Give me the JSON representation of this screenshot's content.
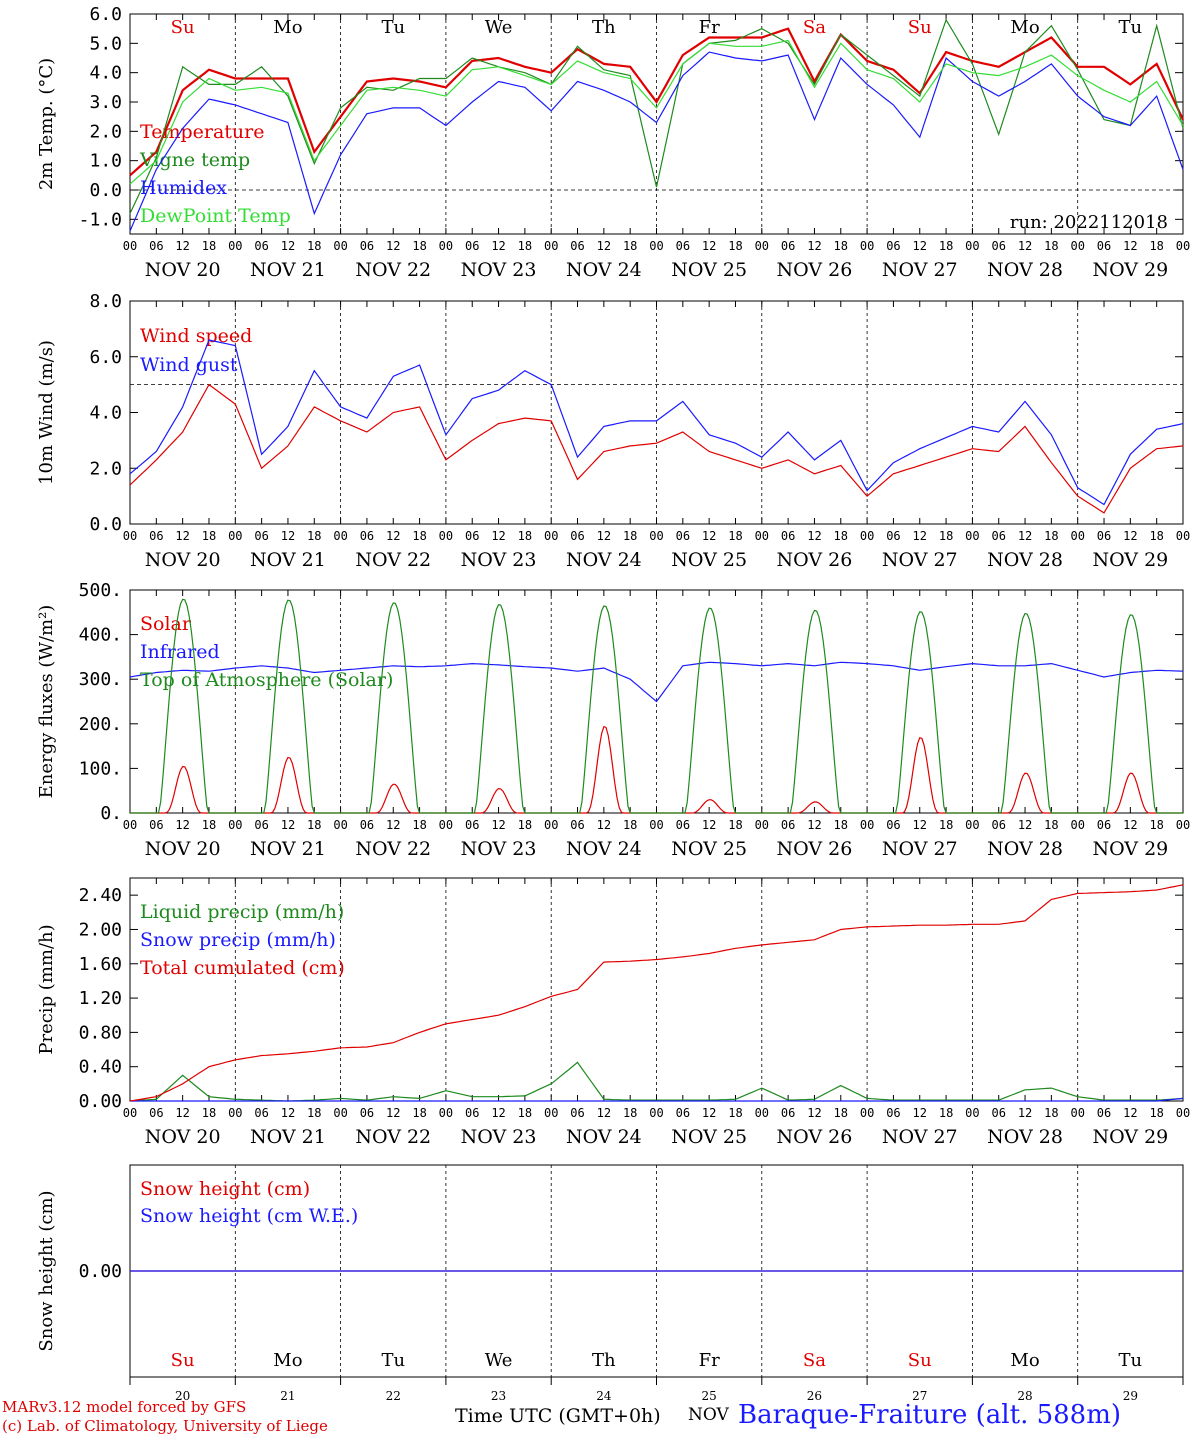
{
  "footer": {
    "model_line1": "MARv3.12 model forced by GFS",
    "model_line2": "(c) Lab. of Climatology, University of Liege",
    "time_label": "Time UTC (GMT+0h)",
    "month_label": "NOV",
    "station": "Baraque-Fraiture (alt. 588m)"
  },
  "days": [
    "NOV 20",
    "NOV 21",
    "NOV 22",
    "NOV 23",
    "NOV 24",
    "NOV 25",
    "NOV 26",
    "NOV 27",
    "NOV 28",
    "NOV 29"
  ],
  "day_numbers": [
    "20",
    "21",
    "22",
    "23",
    "24",
    "25",
    "26",
    "27",
    "28",
    "29"
  ],
  "weekdays": [
    "Su",
    "Mo",
    "Tu",
    "We",
    "Th",
    "Fr",
    "Sa",
    "Su",
    "Mo",
    "Tu"
  ],
  "weekday_colors": [
    "#e00000",
    "#000000",
    "#000000",
    "#000000",
    "#000000",
    "#000000",
    "#e00000",
    "#e00000",
    "#000000",
    "#000000"
  ],
  "hour_ticks": [
    "00",
    "06",
    "12",
    "18"
  ],
  "chart_data": [
    {
      "type": "line",
      "ylabel": "2m Temp. (°C)",
      "ylim": [
        -1.5,
        6.0
      ],
      "yticks": [
        "-1.0",
        "0.0",
        "1.0",
        "2.0",
        "3.0",
        "4.0",
        "5.0",
        "6.0"
      ],
      "dashed_y": 0.0,
      "run_label": "run: 2022112018",
      "x_hours": [
        0,
        6,
        12,
        18,
        24,
        30,
        36,
        42,
        48,
        54,
        60,
        66,
        72,
        78,
        84,
        90,
        96,
        102,
        108,
        114,
        120,
        126,
        132,
        138,
        144,
        150,
        156,
        162,
        168,
        174,
        180,
        186,
        192,
        198,
        204,
        210,
        216,
        222,
        228,
        234,
        240
      ],
      "series": [
        {
          "name": "Temperature",
          "color": "#e00000",
          "values": [
            0.5,
            1.3,
            3.4,
            4.1,
            3.8,
            3.8,
            3.8,
            1.3,
            2.5,
            3.7,
            3.8,
            3.7,
            3.5,
            4.4,
            4.5,
            4.2,
            4.0,
            4.8,
            4.3,
            4.2,
            3.0,
            4.6,
            5.2,
            5.2,
            5.2,
            5.5,
            3.7,
            5.3,
            4.4,
            4.1,
            3.3,
            4.7,
            4.4,
            4.2,
            4.7,
            5.2,
            4.2,
            4.2,
            3.6,
            4.3,
            2.4
          ]
        },
        {
          "name": "Vigne temp",
          "color": "#1e8a1e",
          "values": [
            -0.8,
            1.1,
            4.2,
            3.6,
            3.6,
            4.2,
            3.2,
            0.9,
            2.8,
            3.5,
            3.4,
            3.8,
            3.8,
            4.5,
            4.2,
            4.0,
            3.6,
            4.9,
            4.1,
            3.9,
            0.1,
            4.3,
            5.0,
            5.1,
            5.5,
            5.0,
            3.6,
            5.3,
            4.6,
            3.9,
            3.2,
            5.8,
            4.3,
            1.9,
            4.7,
            5.6,
            4.1,
            2.4,
            2.2,
            5.6,
            2.1
          ]
        },
        {
          "name": "Humidex",
          "color": "#1a1aff",
          "values": [
            -1.4,
            0.7,
            2.1,
            3.1,
            2.9,
            2.6,
            2.3,
            -0.8,
            1.2,
            2.6,
            2.8,
            2.8,
            2.2,
            3.0,
            3.7,
            3.5,
            2.7,
            3.7,
            3.4,
            3.0,
            2.3,
            3.9,
            4.7,
            4.5,
            4.4,
            4.6,
            2.4,
            4.5,
            3.6,
            2.9,
            1.8,
            4.5,
            3.7,
            3.2,
            3.7,
            4.3,
            3.2,
            2.5,
            2.2,
            3.2,
            0.7
          ]
        },
        {
          "name": "DewPoint Temp",
          "color": "#33dd33",
          "values": [
            0.2,
            1.0,
            3.0,
            3.8,
            3.4,
            3.5,
            3.3,
            1.0,
            2.2,
            3.4,
            3.5,
            3.4,
            3.2,
            4.1,
            4.2,
            3.9,
            3.6,
            4.4,
            4.0,
            3.8,
            2.8,
            4.3,
            5.0,
            4.9,
            4.9,
            5.1,
            3.5,
            5.0,
            4.1,
            3.8,
            3.0,
            4.3,
            4.0,
            3.9,
            4.2,
            4.6,
            3.9,
            3.4,
            3.0,
            3.7,
            2.2
          ]
        }
      ]
    },
    {
      "type": "line",
      "ylabel": "10m Wind (m/s)",
      "ylim": [
        0,
        8.0
      ],
      "yticks": [
        "0.0",
        "2.0",
        "4.0",
        "6.0",
        "8.0"
      ],
      "dashed_y": 5.0,
      "x_hours": [
        0,
        6,
        12,
        18,
        24,
        30,
        36,
        42,
        48,
        54,
        60,
        66,
        72,
        78,
        84,
        90,
        96,
        102,
        108,
        114,
        120,
        126,
        132,
        138,
        144,
        150,
        156,
        162,
        168,
        174,
        180,
        186,
        192,
        198,
        204,
        210,
        216,
        222,
        228,
        234,
        240
      ],
      "series": [
        {
          "name": "Wind speed",
          "color": "#e00000",
          "values": [
            1.4,
            2.3,
            3.3,
            5.0,
            4.3,
            2.0,
            2.8,
            4.2,
            3.7,
            3.3,
            4.0,
            4.2,
            2.3,
            3.0,
            3.6,
            3.8,
            3.7,
            1.6,
            2.6,
            2.8,
            2.9,
            3.3,
            2.6,
            2.3,
            2.0,
            2.3,
            1.8,
            2.1,
            1.0,
            1.8,
            2.1,
            2.4,
            2.7,
            2.6,
            3.5,
            2.2,
            1.0,
            0.4,
            2.0,
            2.7,
            2.8
          ]
        },
        {
          "name": "Wind gust",
          "color": "#1a1aff",
          "values": [
            1.8,
            2.6,
            4.2,
            6.6,
            6.4,
            2.5,
            3.5,
            5.5,
            4.2,
            3.8,
            5.3,
            5.7,
            3.2,
            4.5,
            4.8,
            5.5,
            5.0,
            2.4,
            3.5,
            3.7,
            3.7,
            4.4,
            3.2,
            2.9,
            2.4,
            3.3,
            2.3,
            3.0,
            1.2,
            2.2,
            2.7,
            3.1,
            3.5,
            3.3,
            4.4,
            3.2,
            1.3,
            0.7,
            2.5,
            3.4,
            3.6
          ]
        }
      ]
    },
    {
      "type": "line",
      "ylabel": "Energy fluxes (W/m²)",
      "ylim": [
        0,
        500
      ],
      "yticks": [
        "0.",
        "100.",
        "200.",
        "300.",
        "400.",
        "500."
      ],
      "x_hours": [
        0,
        6,
        12,
        18,
        24,
        30,
        36,
        42,
        48,
        54,
        60,
        66,
        72,
        78,
        84,
        90,
        96,
        102,
        108,
        114,
        120,
        126,
        132,
        138,
        144,
        150,
        156,
        162,
        168,
        174,
        180,
        186,
        192,
        198,
        204,
        210,
        216,
        222,
        228,
        234,
        240
      ],
      "series": [
        {
          "name": "Solar",
          "color": "#e00000",
          "peaks": [
            105,
            125,
            65,
            55,
            195,
            30,
            25,
            170,
            90,
            90
          ]
        },
        {
          "name": "Infrared",
          "color": "#1a1aff",
          "values": [
            305,
            315,
            320,
            318,
            325,
            330,
            325,
            315,
            320,
            325,
            330,
            328,
            330,
            335,
            332,
            328,
            325,
            318,
            325,
            300,
            250,
            330,
            338,
            335,
            330,
            335,
            330,
            338,
            335,
            330,
            320,
            328,
            335,
            330,
            330,
            335,
            320,
            305,
            315,
            320,
            318
          ]
        },
        {
          "name": "Top of Atmosphere (Solar)",
          "color": "#1e8a1e",
          "peaks": [
            480,
            478,
            472,
            468,
            465,
            460,
            455,
            452,
            448,
            445
          ]
        }
      ]
    },
    {
      "type": "line",
      "ylabel": "Precip (mm/h)",
      "ylim": [
        0,
        2.6
      ],
      "yticks": [
        "0.00",
        "0.40",
        "0.80",
        "1.20",
        "1.60",
        "2.00",
        "2.40"
      ],
      "x_hours": [
        0,
        6,
        12,
        18,
        24,
        30,
        36,
        42,
        48,
        54,
        60,
        66,
        72,
        78,
        84,
        90,
        96,
        102,
        108,
        114,
        120,
        126,
        132,
        138,
        144,
        150,
        156,
        162,
        168,
        174,
        180,
        186,
        192,
        198,
        204,
        210,
        216,
        222,
        228,
        234,
        240
      ],
      "series": [
        {
          "name": "Liquid precip (mm/h)",
          "color": "#1e8a1e",
          "values": [
            0,
            0.02,
            0.3,
            0.05,
            0.02,
            0.01,
            0,
            0.01,
            0.03,
            0.01,
            0.05,
            0.03,
            0.12,
            0.05,
            0.05,
            0.06,
            0.2,
            0.45,
            0.02,
            0.01,
            0.01,
            0.01,
            0.01,
            0.02,
            0.15,
            0.01,
            0.02,
            0.18,
            0.03,
            0.01,
            0.01,
            0.01,
            0.01,
            0.01,
            0.13,
            0.15,
            0.05,
            0.01,
            0.01,
            0.01,
            0.03
          ]
        },
        {
          "name": "Snow precip (mm/h)",
          "color": "#1a1aff",
          "values": [
            0,
            0,
            0,
            0,
            0,
            0,
            0,
            0,
            0,
            0,
            0,
            0,
            0,
            0,
            0,
            0,
            0,
            0,
            0,
            0,
            0,
            0,
            0,
            0,
            0,
            0,
            0,
            0,
            0,
            0,
            0,
            0,
            0,
            0,
            0,
            0,
            0,
            0,
            0,
            0,
            0.03
          ]
        },
        {
          "name": "Total cumulated (cm)",
          "color": "#e00000",
          "values": [
            0,
            0.05,
            0.2,
            0.4,
            0.48,
            0.53,
            0.55,
            0.58,
            0.62,
            0.63,
            0.68,
            0.8,
            0.9,
            0.95,
            1.0,
            1.1,
            1.22,
            1.3,
            1.62,
            1.63,
            1.65,
            1.68,
            1.72,
            1.78,
            1.82,
            1.85,
            1.88,
            2.0,
            2.03,
            2.04,
            2.05,
            2.05,
            2.06,
            2.06,
            2.1,
            2.35,
            2.42,
            2.43,
            2.44,
            2.46,
            2.52
          ]
        }
      ]
    },
    {
      "type": "line",
      "ylabel": "Snow height (cm)",
      "yticks": [
        "0.00"
      ],
      "series": [
        {
          "name": "Snow height (cm)",
          "color": "#e00000",
          "values": [
            0,
            0
          ]
        },
        {
          "name": "Snow height (cm W.E.)",
          "color": "#1a1aff",
          "values": [
            0,
            0
          ]
        }
      ]
    }
  ]
}
